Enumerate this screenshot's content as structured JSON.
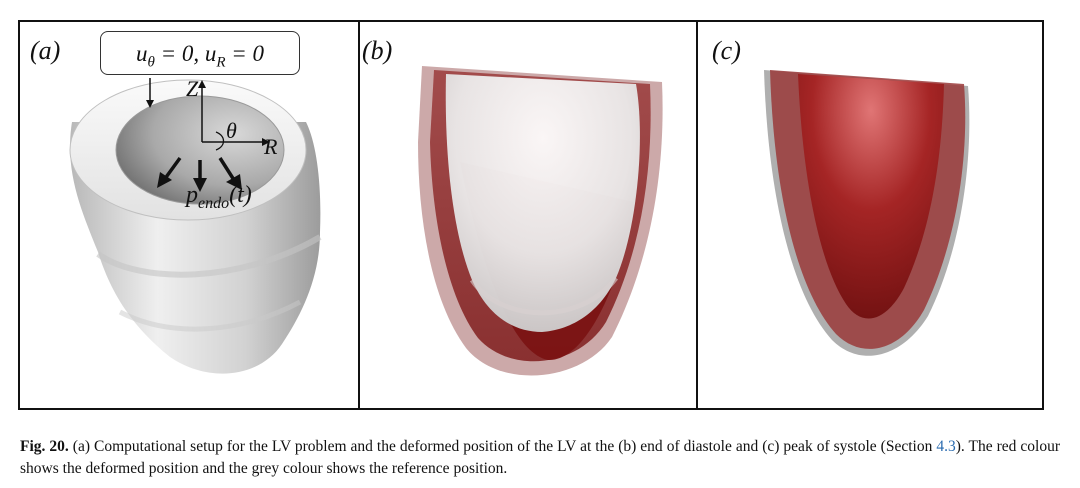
{
  "figure": {
    "panels": [
      {
        "label": "(a)"
      },
      {
        "label": "(b)"
      },
      {
        "label": "(c)"
      }
    ],
    "boundary_condition": {
      "u_theta_symbol": "u",
      "u_theta_sub": "θ",
      "u_theta_rhs": " = 0, ",
      "u_R_symbol": "u",
      "u_R_sub": "R",
      "u_R_rhs": " = 0"
    },
    "axes": {
      "z": "Z",
      "theta": "θ",
      "r": "R"
    },
    "pressure": {
      "symbol": "p",
      "sub": "endo",
      "arg": "(t)"
    },
    "colors": {
      "deformed": "#8b1a1a",
      "reference": "#b9b9b9",
      "frame": "#111111",
      "link": "#2b6cb0"
    }
  },
  "caption": {
    "label": "Fig. 20.",
    "text_1": " (a) Computational setup for the LV problem and the deformed position of the LV at the (b) end of diastole and (c) peak of systole (Section ",
    "section_ref": "4.3",
    "text_2": "). The red colour shows the deformed position and the grey colour shows the reference position."
  }
}
